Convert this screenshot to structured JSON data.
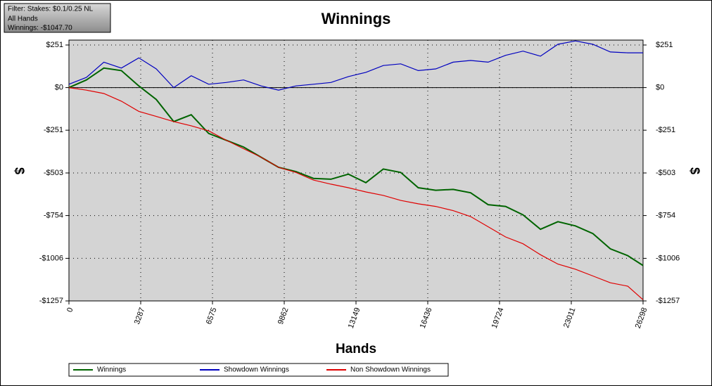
{
  "filter_box": {
    "lines": [
      "Filter: Stakes: $0.1/0.25 NL",
      "All Hands",
      "Winnings: -$1047.70"
    ]
  },
  "chart_data": {
    "type": "line",
    "title": "Winnings",
    "x_label": "Hands",
    "y_label": "$",
    "y2_label": "$",
    "x": [
      0,
      800,
      1600,
      2400,
      3200,
      4000,
      4800,
      5600,
      6400,
      7200,
      8000,
      8800,
      9600,
      10400,
      11200,
      12000,
      12800,
      13600,
      14400,
      15200,
      16000,
      16800,
      17600,
      18400,
      19200,
      20000,
      20800,
      21600,
      22400,
      23200,
      24000,
      24800,
      25600,
      26298
    ],
    "series": [
      {
        "name": "Winnings",
        "color": "#006400",
        "values": [
          0,
          45,
          115,
          100,
          10,
          -70,
          -200,
          -160,
          -270,
          -310,
          -350,
          -410,
          -470,
          -495,
          -535,
          -540,
          -510,
          -560,
          -480,
          -500,
          -590,
          -605,
          -600,
          -620,
          -690,
          -700,
          -750,
          -835,
          -790,
          -815,
          -860,
          -950,
          -990,
          -1048
        ]
      },
      {
        "name": "Showdown Winnings",
        "color": "#0000c0",
        "values": [
          20,
          60,
          150,
          115,
          175,
          110,
          0,
          70,
          20,
          30,
          45,
          10,
          -15,
          10,
          20,
          30,
          65,
          90,
          130,
          140,
          100,
          110,
          150,
          160,
          150,
          190,
          215,
          185,
          255,
          275,
          255,
          210,
          205,
          205
        ]
      },
      {
        "name": "Non Showdown Winnings",
        "color": "#e00000",
        "values": [
          0,
          -15,
          -35,
          -80,
          -140,
          -170,
          -200,
          -225,
          -255,
          -310,
          -360,
          -410,
          -470,
          -500,
          -545,
          -569,
          -590,
          -615,
          -635,
          -665,
          -685,
          -700,
          -725,
          -760,
          -820,
          -880,
          -920,
          -985,
          -1040,
          -1070,
          -1110,
          -1150,
          -1170,
          -1250
        ]
      }
    ],
    "xlim": [
      0,
      26298
    ],
    "xticks": [
      0,
      3287,
      6575,
      9862,
      13149,
      16436,
      19724,
      23011,
      26298
    ],
    "ylim": [
      -1257,
      280
    ],
    "yticks": [
      {
        "value": 251,
        "label": "$251"
      },
      {
        "value": 0,
        "label": "$0"
      },
      {
        "value": -251,
        "label": "-$251"
      },
      {
        "value": -503,
        "label": "-$503"
      },
      {
        "value": -754,
        "label": "-$754"
      },
      {
        "value": -1006,
        "label": "-$1006"
      },
      {
        "value": -1257,
        "label": "-$1257"
      }
    ],
    "y2lim": [
      -1257,
      280
    ],
    "y2ticks": [
      {
        "value": 251,
        "label": "$251"
      },
      {
        "value": 0,
        "label": "$0"
      },
      {
        "value": -251,
        "label": "-$251"
      },
      {
        "value": -503,
        "label": "-$503"
      },
      {
        "value": -754,
        "label": "-$754"
      },
      {
        "value": -1006,
        "label": "-$1006"
      },
      {
        "value": -1257,
        "label": "-$1257"
      }
    ],
    "grid": true,
    "legend": "bottom"
  }
}
